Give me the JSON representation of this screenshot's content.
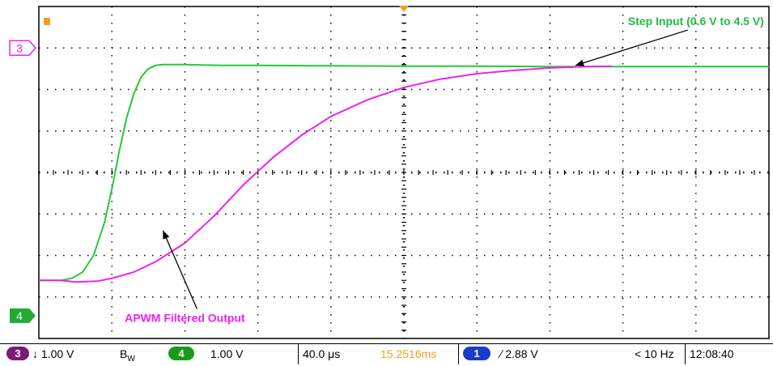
{
  "chart_data": {
    "type": "line",
    "title": "",
    "xlabel": "",
    "ylabel": "",
    "grid": true,
    "x_divisions": 10,
    "y_divisions": 8,
    "xlim": [
      0,
      10
    ],
    "ylim": [
      0,
      8
    ],
    "series": [
      {
        "name": "",
        "channel": "4",
        "color": "#22cc33",
        "x": [
          0,
          0.3,
          0.45,
          0.6,
          0.75,
          0.9,
          1.0,
          1.1,
          1.2,
          1.3,
          1.4,
          1.5,
          1.6,
          1.7,
          1.8,
          2.0,
          2.5,
          3.0,
          4.0,
          5.0,
          6.0,
          7.0,
          8.0,
          9.0,
          10.0
        ],
        "y": [
          1.4,
          1.4,
          1.45,
          1.6,
          2.0,
          2.8,
          3.6,
          4.5,
          5.3,
          5.9,
          6.3,
          6.5,
          6.58,
          6.6,
          6.6,
          6.6,
          6.58,
          6.58,
          6.57,
          6.56,
          6.56,
          6.55,
          6.55,
          6.55,
          6.55
        ]
      },
      {
        "name": "",
        "channel": "3",
        "color": "#ee22ee",
        "x": [
          0,
          0.3,
          0.5,
          0.8,
          1.0,
          1.3,
          1.6,
          2.0,
          2.4,
          2.8,
          3.2,
          3.6,
          4.0,
          4.5,
          5.0,
          5.5,
          6.0,
          6.5,
          7.0,
          7.5,
          7.85
        ],
        "y": [
          1.4,
          1.4,
          1.36,
          1.38,
          1.45,
          1.6,
          1.85,
          2.3,
          2.95,
          3.7,
          4.35,
          4.9,
          5.35,
          5.75,
          6.05,
          6.25,
          6.38,
          6.46,
          6.52,
          6.55,
          6.56
        ]
      }
    ],
    "annotations": [
      {
        "text": "Step Input (0.6 V to 4.5 V)",
        "color": "#22bb44",
        "x": 9.0,
        "y": 7.55,
        "arrow_to": [
          7.35,
          6.58
        ]
      },
      {
        "text": "APWM Filtered Output",
        "color": "#ee22ee",
        "x": 2.0,
        "y": 0.4,
        "arrow_to": [
          1.7,
          2.6
        ]
      }
    ],
    "markers": [
      {
        "label": "3",
        "color": "#ee22ee",
        "y": 7.0
      },
      {
        "label": "4",
        "color": "#22aa33",
        "y": 0.55
      }
    ]
  },
  "status_bar": {
    "ch3_badge": "3",
    "ch3_scale": "↓ 1.00 V",
    "bandwidth": "B",
    "bandwidth_sub": "W",
    "ch4_badge": "4",
    "ch4_scale": "1.00 V",
    "timebase": "40.0 μs",
    "trigger_pos": "15.2516ms",
    "trig_badge": "1",
    "trig_level": "∕ 2.88 V",
    "trig_freq": "< 10 Hz",
    "clock": "12:08:40"
  },
  "colors": {
    "ch3_badge_bg": "#7a1a7a",
    "ch4_badge_bg": "#1a9a1a",
    "trig_badge_bg": "#1a3ad0",
    "trigger_marker": "#f0a020"
  }
}
